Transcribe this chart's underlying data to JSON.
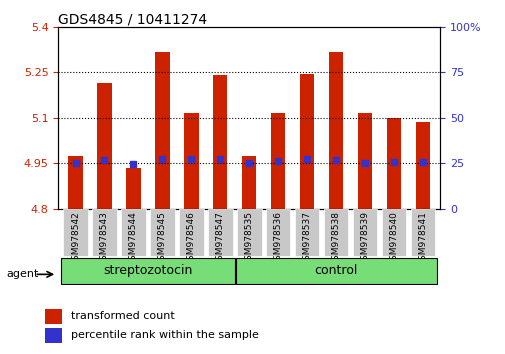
{
  "title": "GDS4845 / 10411274",
  "samples": [
    "GSM978542",
    "GSM978543",
    "GSM978544",
    "GSM978545",
    "GSM978546",
    "GSM978547",
    "GSM978535",
    "GSM978536",
    "GSM978537",
    "GSM978538",
    "GSM978539",
    "GSM978540",
    "GSM978541"
  ],
  "red_values": [
    4.975,
    5.215,
    4.935,
    5.315,
    5.115,
    5.24,
    4.975,
    5.115,
    5.245,
    5.315,
    5.115,
    5.1,
    5.085
  ],
  "blue_values": [
    4.95,
    4.96,
    4.948,
    4.965,
    4.963,
    4.963,
    4.952,
    4.956,
    4.963,
    4.962,
    4.952,
    4.955,
    4.953
  ],
  "y_min": 4.8,
  "y_max": 5.4,
  "y_ticks_red": [
    4.8,
    4.95,
    5.1,
    5.25,
    5.4
  ],
  "y_ticks_blue": [
    0,
    25,
    50,
    75,
    100
  ],
  "bar_color": "#CC2200",
  "blue_color": "#3333CC",
  "bar_width": 0.5,
  "agent_label": "agent",
  "legend_red": "transformed count",
  "legend_blue": "percentile rank within the sample",
  "ylabel_left_color": "#CC2200",
  "ylabel_right_color": "#3333CC",
  "bg_group": "#77DD77",
  "bg_tick": "#C8C8C8",
  "strep_count": 6,
  "control_count": 7
}
